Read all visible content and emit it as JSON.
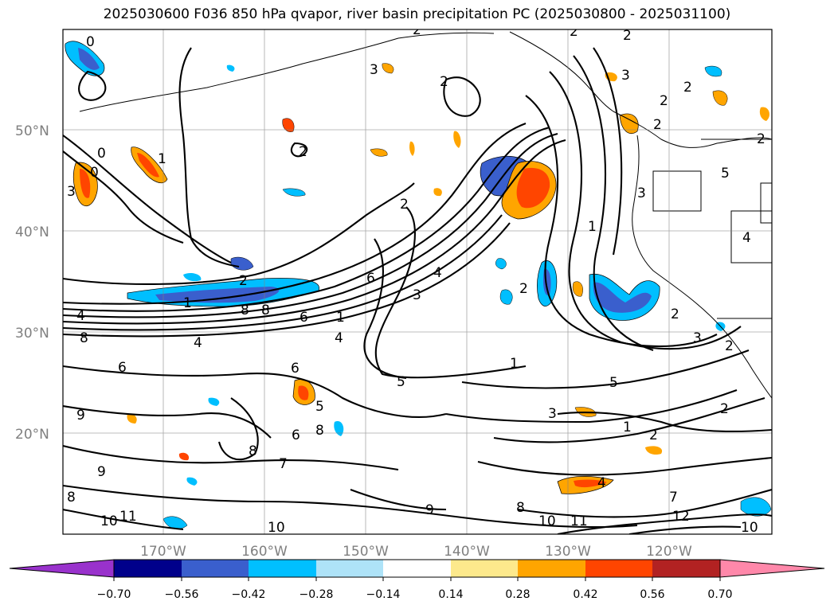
{
  "title": "2025030600 F036 850 hPa qvapor, river basin precipitation PC (2025030800 - 2025031100)",
  "lat_labels": [
    "50°N",
    "40°N",
    "30°N",
    "20°N"
  ],
  "lon_labels": [
    "170°W",
    "160°W",
    "150°W",
    "140°W",
    "130°W",
    "120°W"
  ],
  "colorbar": {
    "ticks": [
      "−0.70",
      "−0.56",
      "−0.42",
      "−0.28",
      "−0.14",
      "0.14",
      "0.28",
      "0.42",
      "0.56",
      "0.70"
    ],
    "colors": [
      "#9932cc",
      "#00008b",
      "#3a5fcd",
      "#00bfff",
      "#aee3f8",
      "#ffffff",
      "#fde98c",
      "#ffa500",
      "#ff4500",
      "#b22222",
      "#ff88aa"
    ]
  },
  "contour_labels": [
    "0",
    "2",
    "2",
    "2",
    "2",
    "3",
    "2",
    "2",
    "2",
    "2",
    "0",
    "1",
    "0",
    "3",
    "2",
    "1",
    "4",
    "5",
    "2",
    "3",
    "2",
    "3",
    "4",
    "3",
    "2",
    "4",
    "6",
    "1",
    "8",
    "8",
    "6",
    "4",
    "3",
    "2",
    "8",
    "1",
    "4",
    "2",
    "1",
    "6",
    "6",
    "5",
    "5",
    "3",
    "1",
    "2",
    "9",
    "2",
    "5",
    "8",
    "6",
    "7",
    "8",
    "8",
    "9",
    "11",
    "10",
    "10",
    "8",
    "10",
    "11",
    "12",
    "9",
    "10",
    "4",
    "7"
  ]
}
